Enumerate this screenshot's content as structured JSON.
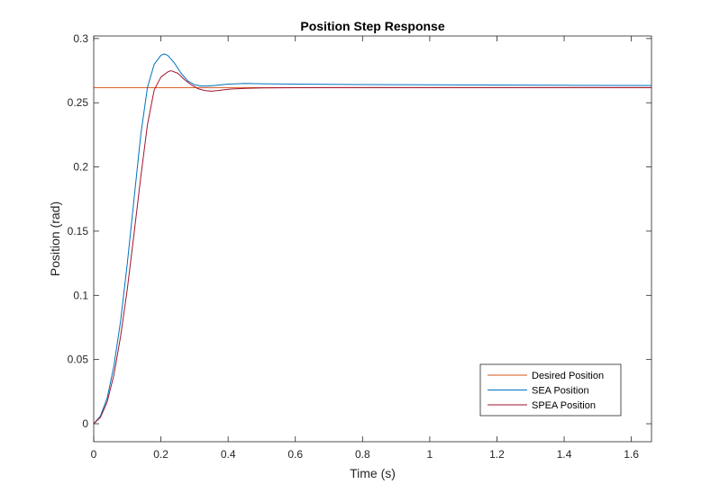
{
  "chart_data": {
    "type": "line",
    "title": "Position Step Response",
    "xlabel": "Time (s)",
    "ylabel": "Position (rad)",
    "xlim": [
      0,
      1.66
    ],
    "ylim": [
      -0.014,
      0.302
    ],
    "xticks": [
      0,
      0.2,
      0.4,
      0.6,
      0.8,
      1,
      1.2,
      1.4,
      1.6
    ],
    "xtick_labels": [
      "0",
      "0.2",
      "0.4",
      "0.6",
      "0.8",
      "1",
      "1.2",
      "1.4",
      "1.6"
    ],
    "yticks": [
      0,
      0.05,
      0.1,
      0.15,
      0.2,
      0.25,
      0.3
    ],
    "ytick_labels": [
      "0",
      "0.05",
      "0.1",
      "0.15",
      "0.2",
      "0.25",
      "0.3"
    ],
    "grid": false,
    "legend_position": "bottom-right",
    "series": [
      {
        "name": "Desired Position",
        "color": "#D95319",
        "x": [
          0,
          1.66
        ],
        "y": [
          0.2618,
          0.2618
        ]
      },
      {
        "name": "SEA Position",
        "color": "#0072BD",
        "x": [
          0,
          0.02,
          0.04,
          0.06,
          0.08,
          0.1,
          0.12,
          0.14,
          0.16,
          0.18,
          0.2,
          0.21,
          0.22,
          0.24,
          0.26,
          0.28,
          0.3,
          0.32,
          0.34,
          0.36,
          0.38,
          0.4,
          0.45,
          0.5,
          0.6,
          0.8,
          1.0,
          1.2,
          1.4,
          1.66
        ],
        "y": [
          0,
          0.006,
          0.02,
          0.045,
          0.08,
          0.125,
          0.175,
          0.225,
          0.262,
          0.28,
          0.287,
          0.288,
          0.287,
          0.281,
          0.273,
          0.267,
          0.264,
          0.263,
          0.263,
          0.2635,
          0.264,
          0.2645,
          0.265,
          0.2648,
          0.2645,
          0.2642,
          0.264,
          0.2638,
          0.2636,
          0.2635
        ]
      },
      {
        "name": "SPEA Position",
        "color": "#A2142F",
        "x": [
          0,
          0.02,
          0.04,
          0.06,
          0.08,
          0.1,
          0.12,
          0.14,
          0.16,
          0.18,
          0.2,
          0.22,
          0.23,
          0.25,
          0.27,
          0.29,
          0.31,
          0.33,
          0.35,
          0.37,
          0.4,
          0.45,
          0.5,
          0.6,
          0.8,
          1.0,
          1.2,
          1.4,
          1.66
        ],
        "y": [
          0,
          0.005,
          0.017,
          0.038,
          0.068,
          0.105,
          0.148,
          0.192,
          0.233,
          0.26,
          0.27,
          0.274,
          0.275,
          0.273,
          0.268,
          0.264,
          0.261,
          0.2595,
          0.259,
          0.2595,
          0.2605,
          0.2612,
          0.2615,
          0.2617,
          0.2618,
          0.2618,
          0.2618,
          0.2618,
          0.2618
        ]
      }
    ]
  }
}
